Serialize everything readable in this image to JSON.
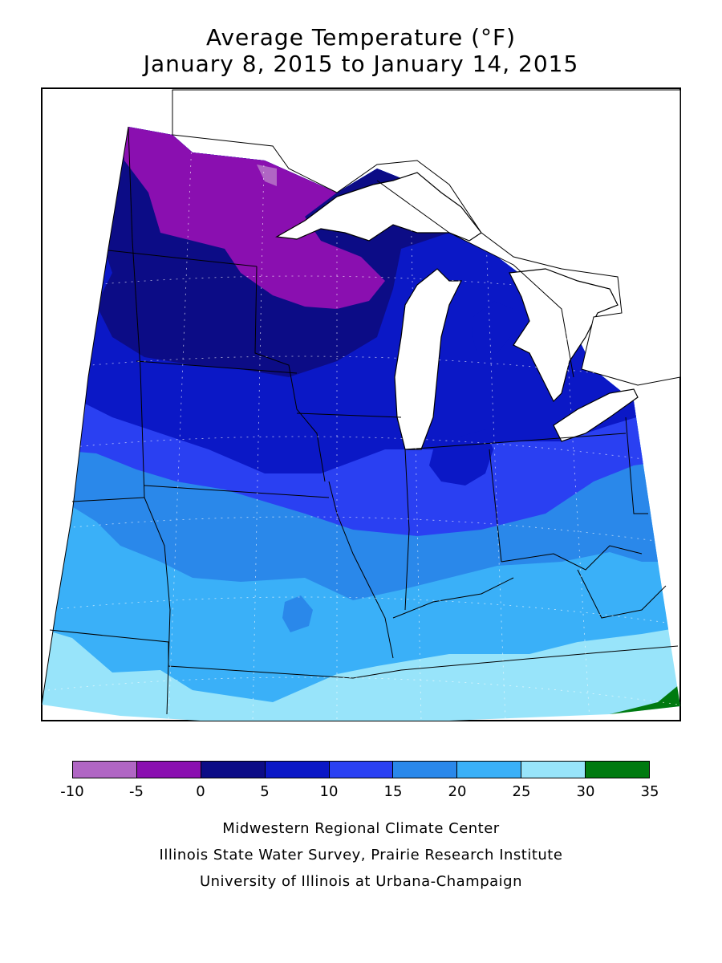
{
  "title": {
    "line1": "Average Temperature (°F)",
    "line2": "January 8, 2015 to January 14, 2015"
  },
  "colors": {
    "below_-5": "#b066c4",
    "-5_to_0": "#8a0fb0",
    "0_to_5": "#0c0c86",
    "5_to_10": "#0b18c6",
    "10_to_15": "#2a40f2",
    "15_to_20": "#2a88ea",
    "20_to_25": "#3ab0f8",
    "25_to_30": "#98e4fa",
    "30_to_35": "#007a10",
    "water": "#ffffff"
  },
  "legend": {
    "ticks": [
      "-10",
      "-5",
      "0",
      "5",
      "10",
      "15",
      "20",
      "25",
      "30",
      "35"
    ],
    "swatches": [
      "#b066c4",
      "#8a0fb0",
      "#0c0c86",
      "#0b18c6",
      "#2a40f2",
      "#2a88ea",
      "#3ab0f8",
      "#98e4fa",
      "#007a10"
    ]
  },
  "credits": {
    "line1": "Midwestern Regional Climate Center",
    "line2": "Illinois State Water Survey, Prairie Research Institute",
    "line3": "University of Illinois at Urbana-Champaign"
  }
}
